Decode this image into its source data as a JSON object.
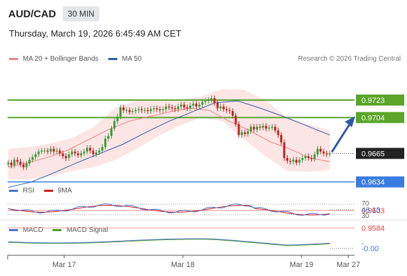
{
  "header": {
    "symbol": "AUD/CAD",
    "timeframe": "30 MIN"
  },
  "datetime": "Thursday, March 19, 2026 6:45:49 AM CET",
  "legend": {
    "ma20_label": "MA 20 + Bollinger Bands",
    "ma50_label": "MA 50",
    "ma20_color": "#f08080",
    "ma50_color": "#2b5aa8",
    "credit": "Research © 2026 Trading Central"
  },
  "price_levels": [
    {
      "label": "0.9723",
      "kind": "resistance",
      "color": "#5aa52a"
    },
    {
      "label": "0.9704",
      "kind": "resistance",
      "color": "#5aa52a"
    },
    {
      "label": "0.9665",
      "kind": "last",
      "color": "#222222"
    },
    {
      "label": "0.9634",
      "kind": "pivot",
      "color": "#3a7be0"
    },
    {
      "label": "0.9603",
      "kind": "support",
      "color": "#e04040"
    },
    {
      "label": "0.9584",
      "kind": "support",
      "color": "#e04040"
    }
  ],
  "rsi": {
    "label": "RSI",
    "ma_label": "9MA",
    "rsi_color": "#4a72c8",
    "ma_color": "#d01818",
    "level_high": "70",
    "value": "46.13",
    "level_low": "30"
  },
  "macd": {
    "label": "MACD",
    "signal_label": "MACD Signal",
    "macd_color": "#4a72c8",
    "signal_color": "#4aa020",
    "value": "-0.00"
  },
  "xaxis": {
    "ticks": [
      "Mar 17",
      "Mar 18",
      "Mar 19",
      "Mar 27"
    ]
  },
  "chart_data": {
    "type": "candlestick",
    "x": "30-minute bars, Mar 16 – Mar 19 2026",
    "close": [
      0.9655,
      0.9652,
      0.9658,
      0.9656,
      0.9653,
      0.965,
      0.9654,
      0.9658,
      0.9661,
      0.9664,
      0.9667,
      0.9668,
      0.9668,
      0.9667,
      0.967,
      0.9667,
      0.9668,
      0.9665,
      0.9662,
      0.966,
      0.9664,
      0.9667,
      0.9665,
      0.9663,
      0.9665,
      0.9667,
      0.9671,
      0.9668,
      0.9664,
      0.9666,
      0.9668,
      0.9672,
      0.9681,
      0.9684,
      0.9692,
      0.97,
      0.9705,
      0.9715,
      0.9712,
      0.9712,
      0.971,
      0.9711,
      0.9712,
      0.9713,
      0.9712,
      0.9712,
      0.9711,
      0.9713,
      0.9714,
      0.9713,
      0.9712,
      0.9713,
      0.9716,
      0.9715,
      0.9714,
      0.9713,
      0.9716,
      0.9718,
      0.9715,
      0.9714,
      0.9717,
      0.9719,
      0.9716,
      0.9718,
      0.9721,
      0.9722,
      0.9723,
      0.9725,
      0.972,
      0.9714,
      0.9716,
      0.9713,
      0.9712,
      0.9711,
      0.9706,
      0.9697,
      0.9685,
      0.9688,
      0.9686,
      0.9689,
      0.9694,
      0.9691,
      0.9694,
      0.9693,
      0.9695,
      0.9692,
      0.9693,
      0.9694,
      0.969,
      0.9685,
      0.9677,
      0.966,
      0.9657,
      0.9656,
      0.9658,
      0.9655,
      0.9658,
      0.966,
      0.9662,
      0.966,
      0.9659,
      0.9664,
      0.967,
      0.9667,
      0.9665,
      0.9664,
      0.9665
    ],
    "ma20": [
      0.965,
      0.9655,
      0.9661,
      0.9669,
      0.968,
      0.9691,
      0.97,
      0.9705,
      0.971,
      0.9714,
      0.9712,
      0.97,
      0.969,
      0.9678,
      0.967,
      0.966,
      0.9656
    ],
    "ma50": [
      0.9628,
      0.9634,
      0.9644,
      0.9655,
      0.9665,
      0.9675,
      0.9688,
      0.97,
      0.971,
      0.972,
      0.9722,
      0.9714,
      0.9705,
      0.9695,
      0.9685
    ],
    "bb_upper": [
      0.967,
      0.9672,
      0.9676,
      0.9682,
      0.9694,
      0.9715,
      0.9722,
      0.9723,
      0.9723,
      0.9727,
      0.9735,
      0.9734,
      0.9723,
      0.9704,
      0.9697,
      0.969
    ],
    "bb_lower": [
      0.9637,
      0.9637,
      0.964,
      0.9646,
      0.965,
      0.9658,
      0.967,
      0.9684,
      0.9695,
      0.9704,
      0.97,
      0.968,
      0.9662,
      0.9646,
      0.9645,
      0.9647
    ],
    "levels": [
      0.9723,
      0.9704,
      0.9665,
      0.9634,
      0.9603,
      0.9584
    ],
    "forecast": {
      "from": 0.9665,
      "to": 0.9704,
      "direction": "up"
    },
    "rsi_levels": [
      70,
      30
    ],
    "rsi_last": 46.13,
    "macd_last": -0.0,
    "x_ticks": [
      "Mar 17",
      "Mar 18",
      "Mar 19",
      "Mar 27"
    ]
  }
}
